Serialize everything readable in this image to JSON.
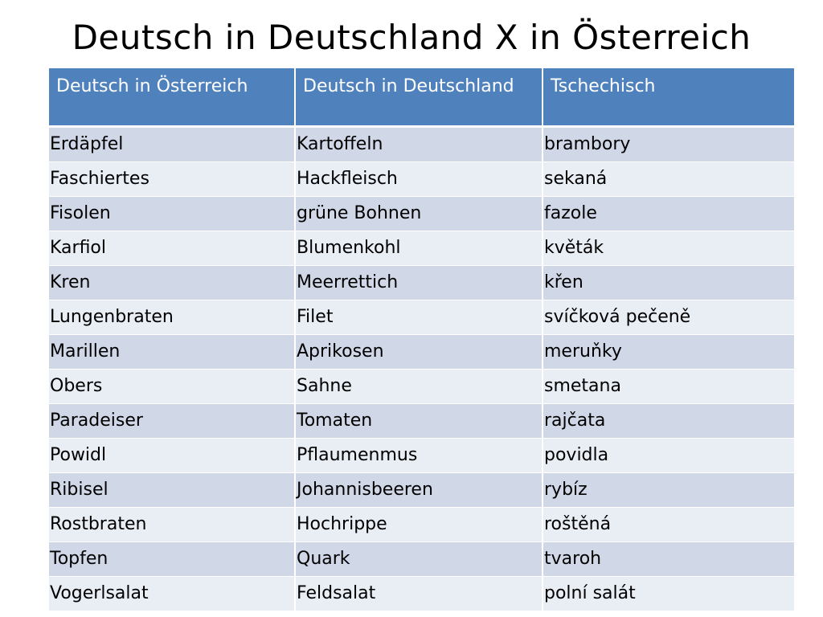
{
  "title": "Deutsch in Deutschland X in Österreich",
  "table": {
    "headers": [
      "Deutsch in Österreich",
      "Deutsch in Deutschland",
      "Tschechisch"
    ],
    "rows": [
      [
        "Erdäpfel",
        "Kartoffeln",
        "brambory"
      ],
      [
        "Faschiertes",
        "Hackfleisch",
        "sekaná"
      ],
      [
        "Fisolen",
        "grüne Bohnen",
        "fazole"
      ],
      [
        "Karfiol",
        "Blumenkohl",
        "květák"
      ],
      [
        "Kren",
        "Meerrettich",
        "křen"
      ],
      [
        "Lungenbraten",
        "Filet",
        "svíčková pečeně"
      ],
      [
        "Marillen",
        "Aprikosen",
        "meruňky"
      ],
      [
        "Obers",
        "Sahne",
        "smetana"
      ],
      [
        "Paradeiser",
        "Tomaten",
        "rajčata"
      ],
      [
        "Powidl",
        "Pflaumenmus",
        "povidla"
      ],
      [
        "Ribisel",
        "Johannisbeeren",
        "rybíz"
      ],
      [
        "Rostbraten",
        "Hochrippe",
        "roštěná"
      ],
      [
        "Topfen",
        "Quark",
        "tvaroh"
      ],
      [
        "Vogerlsalat",
        "Feldsalat",
        "polní salát"
      ]
    ]
  },
  "colors": {
    "header_background": "#4f81bd",
    "header_text": "#ffffff",
    "row_odd": "#d0d8e8",
    "row_even": "#e9edf4"
  }
}
